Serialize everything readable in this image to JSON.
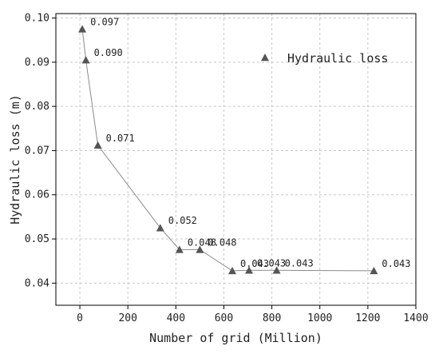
{
  "chart_data": {
    "type": "line",
    "xlabel": "Number of grid (Million)",
    "ylabel": "Hydraulic loss (m)",
    "xlim": [
      -100,
      1400
    ],
    "ylim": [
      0.035,
      0.101
    ],
    "xticks": [
      0,
      200,
      400,
      600,
      800,
      1000,
      1200,
      1400
    ],
    "yticks": [
      0.04,
      0.05,
      0.06,
      0.07,
      0.08,
      0.09,
      0.1
    ],
    "xtick_labels": [
      "0",
      "200",
      "400",
      "600",
      "800",
      "1000",
      "1200",
      "1400"
    ],
    "ytick_labels": [
      "0.04",
      "0.05",
      "0.06",
      "0.07",
      "0.08",
      "0.09",
      "0.10"
    ],
    "grid": true,
    "legend_position": "top-right",
    "series": [
      {
        "name": "Hydraulic loss",
        "marker": "triangle",
        "color": "#555555",
        "x": [
          10,
          25,
          75,
          335,
          415,
          500,
          635,
          705,
          820,
          1225
        ],
        "y": [
          0.0975,
          0.0905,
          0.0712,
          0.0525,
          0.0476,
          0.0476,
          0.0428,
          0.0429,
          0.0429,
          0.0428
        ],
        "labels": [
          "0.097",
          "0.090",
          "0.071",
          "0.052",
          "0.048",
          "0.048",
          "0.043",
          "0.043",
          "0.043",
          "0.043"
        ]
      }
    ]
  }
}
